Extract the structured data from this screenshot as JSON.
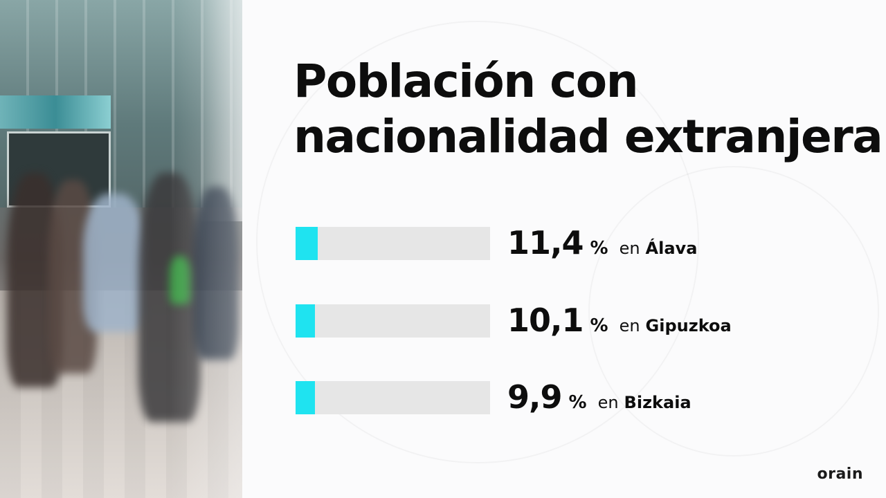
{
  "title_lines": [
    "Población con",
    "nacionalidad extranjera"
  ],
  "chart_data": {
    "type": "bar",
    "title": "Población con nacionalidad extranjera",
    "unit": "%",
    "connector": "en",
    "categories": [
      "Álava",
      "Gipuzkoa",
      "Bizkaia"
    ],
    "values": [
      11.4,
      10.1,
      9.9
    ],
    "value_labels": [
      "11,4",
      "10,1",
      "9,9"
    ],
    "ylim": [
      0,
      100
    ],
    "orientation": "horizontal"
  },
  "logo": "orain",
  "colors": {
    "bar_fill": "#1fe3f0",
    "bar_track": "#e6e6e6",
    "text": "#0d0d0d",
    "background": "#fbfbfc"
  }
}
